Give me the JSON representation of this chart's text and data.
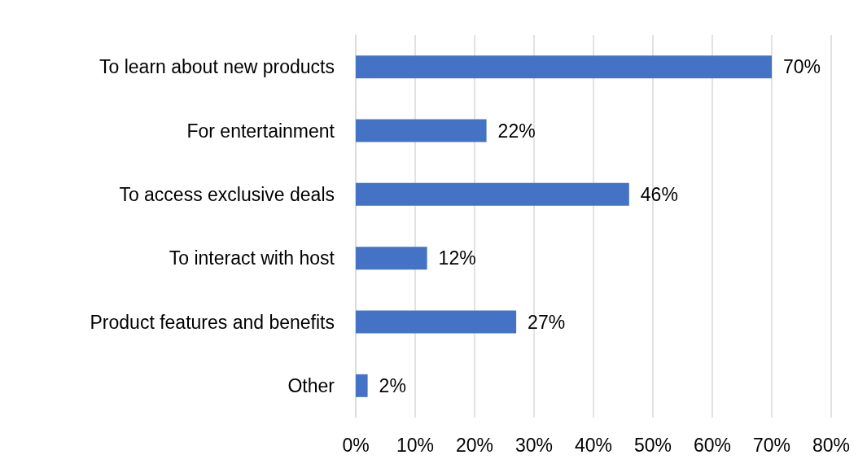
{
  "chart_data": {
    "type": "bar",
    "orientation": "horizontal",
    "categories": [
      "To learn about new products",
      "For entertainment",
      "To access exclusive deals",
      "To interact with host",
      "Product features and benefits",
      "Other"
    ],
    "values": [
      70,
      22,
      46,
      12,
      27,
      2
    ],
    "value_labels": [
      "70%",
      "22%",
      "46%",
      "12%",
      "27%",
      "2%"
    ],
    "color": "#4472c4",
    "xlim": [
      0,
      80
    ],
    "xticks": [
      {
        "value": 0,
        "label": "0%"
      },
      {
        "value": 10,
        "label": "10%"
      },
      {
        "value": 20,
        "label": "20%"
      },
      {
        "value": 30,
        "label": "30%"
      },
      {
        "value": 40,
        "label": "40%"
      },
      {
        "value": 50,
        "label": "50%"
      },
      {
        "value": 60,
        "label": "60%"
      },
      {
        "value": 70,
        "label": "70%"
      },
      {
        "value": 80,
        "label": "80%"
      }
    ],
    "grid": "x"
  }
}
